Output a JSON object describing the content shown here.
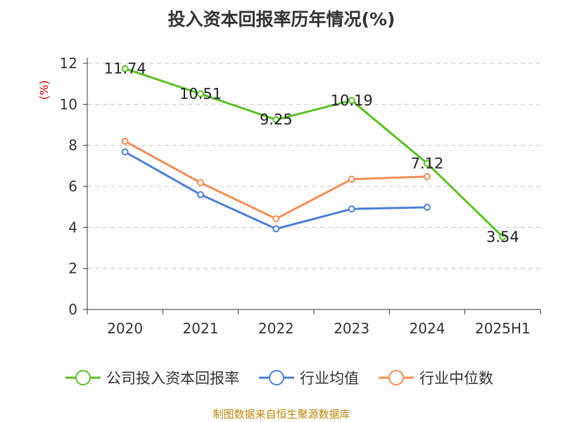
{
  "chart_data": {
    "type": "line",
    "title": "投入资本回报率历年情况(%)",
    "ylabel": "(%)",
    "xlabel": "",
    "categories": [
      "2020",
      "2021",
      "2022",
      "2023",
      "2024",
      "2025H1"
    ],
    "ylim": [
      0,
      12
    ],
    "yticks": [
      0,
      2,
      4,
      6,
      8,
      10,
      12
    ],
    "grid": true,
    "legend_position": "bottom",
    "series": [
      {
        "name": "公司投入资本回报率",
        "color": "#5cbf29",
        "values": [
          11.74,
          10.51,
          9.25,
          10.19,
          7.12,
          3.54
        ],
        "show_labels": true
      },
      {
        "name": "行业均值",
        "color": "#4e7fd6",
        "values": [
          7.68,
          5.6,
          3.93,
          4.9,
          4.98,
          null
        ],
        "show_labels": false
      },
      {
        "name": "行业中位数",
        "color": "#f28e55",
        "values": [
          8.2,
          6.18,
          4.42,
          6.35,
          6.48,
          null
        ],
        "show_labels": false
      }
    ]
  },
  "source": "制图数据来自恒生聚源数据库"
}
